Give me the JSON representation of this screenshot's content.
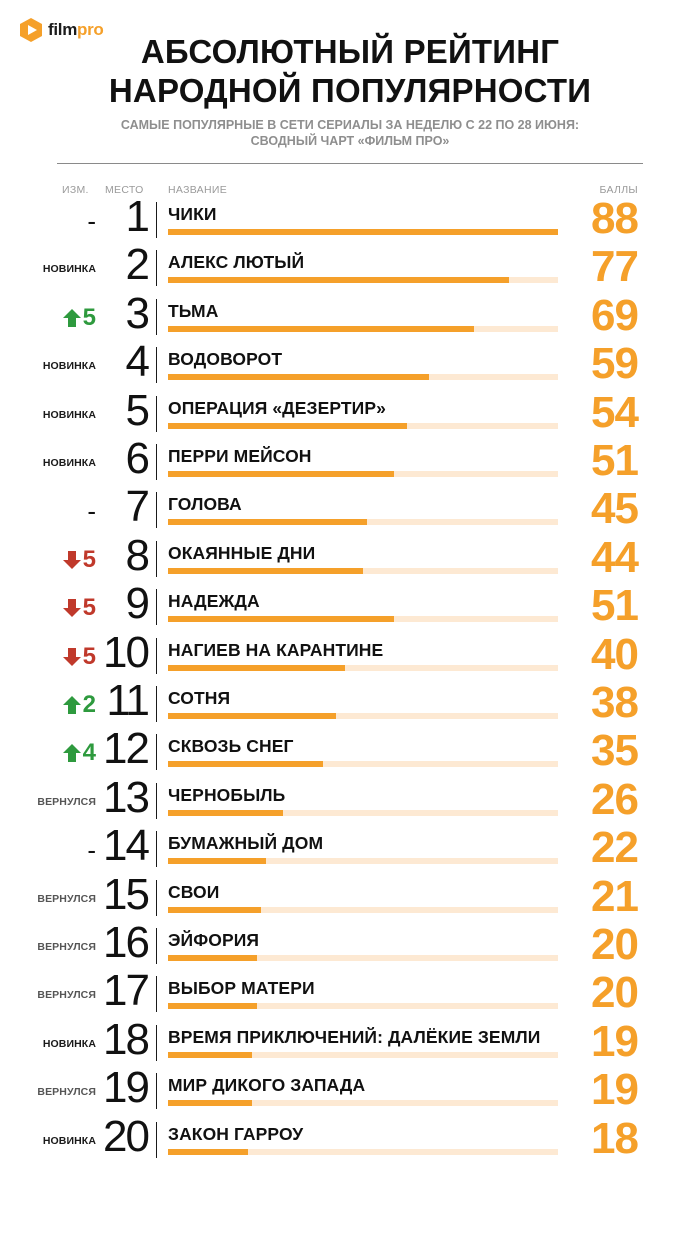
{
  "logo": {
    "text_part1": "film",
    "text_part2": "pro"
  },
  "title_line1": "АБСОЛЮТНЫЙ РЕЙТИНГ",
  "title_line2": "НАРОДНОЙ ПОПУЛЯРНОСТИ",
  "subtitle_line1": "САМЫЕ ПОПУЛЯРНЫЕ В СЕТИ СЕРИАЛЫ ЗА НЕДЕЛЮ С 22 ПО 28 ИЮНЯ:",
  "subtitle_line2": "СВОДНЫЙ ЧАРТ «ФИЛЬМ ПРО»",
  "headers": {
    "change": "ИЗМ.",
    "place": "МЕСТО",
    "name": "НАЗВАНИЕ",
    "score": "БАЛЛЫ"
  },
  "colors": {
    "accent": "#f5a02a",
    "track": "#fde9d3",
    "up": "#2e9a3e",
    "down": "#c0392b"
  },
  "chart_data": {
    "type": "bar",
    "orientation": "horizontal",
    "title": "АБСОЛЮТНЫЙ РЕЙТИНГ НАРОДНОЙ ПОПУЛЯРНОСТИ",
    "xlim": [
      0,
      88
    ],
    "rows": [
      {
        "place": "1",
        "name": "ЧИКИ",
        "score": 88,
        "change": {
          "type": "same",
          "text": "-"
        }
      },
      {
        "place": "2",
        "name": "АЛЕКС ЛЮТЫЙ",
        "score": 77,
        "change": {
          "type": "new",
          "text": "НОВИНКА"
        }
      },
      {
        "place": "3",
        "name": "ТЬМА",
        "score": 69,
        "change": {
          "type": "up",
          "text": "5"
        }
      },
      {
        "place": "4",
        "name": "ВОДОВОРОТ",
        "score": 59,
        "change": {
          "type": "new",
          "text": "НОВИНКА"
        }
      },
      {
        "place": "5",
        "name": "ОПЕРАЦИЯ «ДЕЗЕРТИР»",
        "score": 54,
        "change": {
          "type": "new",
          "text": "НОВИНКА"
        }
      },
      {
        "place": "6",
        "name": "ПЕРРИ МЕЙСОН",
        "score": 51,
        "change": {
          "type": "new",
          "text": "НОВИНКА"
        }
      },
      {
        "place": "7",
        "name": "ГОЛОВА",
        "score": 45,
        "change": {
          "type": "same",
          "text": "-"
        }
      },
      {
        "place": "8",
        "name": "ОКАЯННЫЕ ДНИ",
        "score": 44,
        "change": {
          "type": "down",
          "text": "5"
        }
      },
      {
        "place": "9",
        "name": "НАДЕЖДА",
        "score": 51,
        "change": {
          "type": "down",
          "text": "5"
        }
      },
      {
        "place": "10",
        "name": "НАГИЕВ НА КАРАНТИНЕ",
        "score": 40,
        "change": {
          "type": "down",
          "text": "5"
        }
      },
      {
        "place": "11",
        "name": "СОТНЯ",
        "score": 38,
        "change": {
          "type": "up",
          "text": "2"
        }
      },
      {
        "place": "12",
        "name": "СКВОЗЬ СНЕГ",
        "score": 35,
        "change": {
          "type": "up",
          "text": "4"
        }
      },
      {
        "place": "13",
        "name": "ЧЕРНОБЫЛЬ",
        "score": 26,
        "change": {
          "type": "returned",
          "text": "ВЕРНУЛСЯ"
        }
      },
      {
        "place": "14",
        "name": "БУМАЖНЫЙ ДОМ",
        "score": 22,
        "change": {
          "type": "same",
          "text": "-"
        }
      },
      {
        "place": "15",
        "name": "СВОИ",
        "score": 21,
        "change": {
          "type": "returned",
          "text": "ВЕРНУЛСЯ"
        }
      },
      {
        "place": "16",
        "name": "ЭЙФОРИЯ",
        "score": 20,
        "change": {
          "type": "returned",
          "text": "ВЕРНУЛСЯ"
        }
      },
      {
        "place": "17",
        "name": "ВЫБОР МАТЕРИ",
        "score": 20,
        "change": {
          "type": "returned",
          "text": "ВЕРНУЛСЯ"
        }
      },
      {
        "place": "18",
        "name": "ВРЕМЯ ПРИКЛЮЧЕНИЙ: ДАЛЁКИЕ ЗЕМЛИ",
        "score": 19,
        "change": {
          "type": "new",
          "text": "НОВИНКА"
        }
      },
      {
        "place": "19",
        "name": "МИР ДИКОГО ЗАПАДА",
        "score": 19,
        "change": {
          "type": "returned",
          "text": "ВЕРНУЛСЯ"
        }
      },
      {
        "place": "20",
        "name": "ЗАКОН ГАРРОУ",
        "score": 18,
        "change": {
          "type": "new",
          "text": "НОВИНКА"
        }
      }
    ]
  }
}
